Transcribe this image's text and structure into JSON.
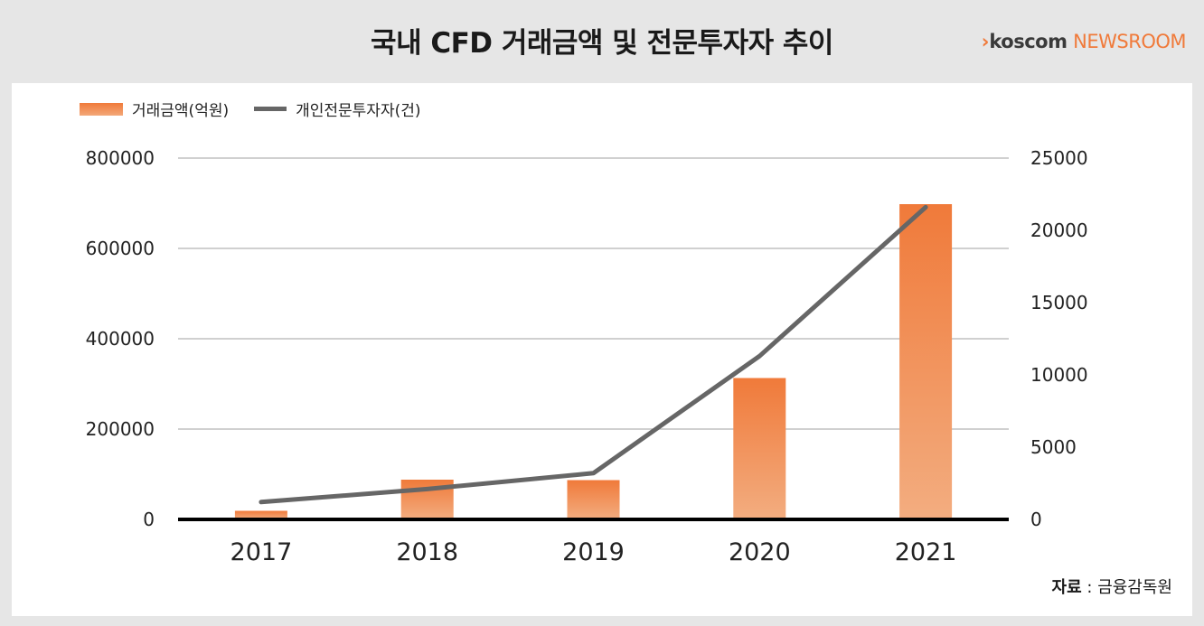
{
  "header": {
    "title": "국내 CFD 거래금액 및 전문투자자 추이",
    "brand_prefix": "›",
    "brand_name": "koscom",
    "brand_suffix": "NEWSROOM"
  },
  "source": {
    "label": "자료",
    "separator": " : ",
    "value": "금융감독원"
  },
  "colors": {
    "bar_top": "#f07a3a",
    "bar_bottom": "#f3ad80",
    "line": "#666666",
    "brand_accent": "#f07a3a"
  },
  "chart_data": {
    "type": "bar",
    "categories": [
      "2017",
      "2018",
      "2019",
      "2020",
      "2021"
    ],
    "series": [
      {
        "name": "거래금액(억원)",
        "type": "bar",
        "axis": "left",
        "values": [
          19000,
          88000,
          87000,
          313000,
          698000
        ]
      },
      {
        "name": "개인전문투자자(건)",
        "type": "line",
        "axis": "right",
        "values": [
          1200,
          2100,
          3200,
          11300,
          21600
        ]
      }
    ],
    "y_left": {
      "min": 0,
      "max": 800000,
      "ticks": [
        "0",
        "200000",
        "400000",
        "600000",
        "800000"
      ]
    },
    "y_right": {
      "min": 0,
      "max": 25000,
      "ticks": [
        "0",
        "5000",
        "10000",
        "15000",
        "20000",
        "25000"
      ]
    },
    "grid": true,
    "legend_position": "top-left"
  }
}
